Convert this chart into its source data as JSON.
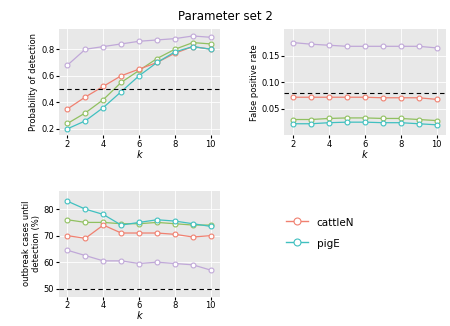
{
  "title": "Parameter set 2",
  "k": [
    2,
    3,
    4,
    5,
    6,
    7,
    8,
    9,
    10
  ],
  "pod": {
    "cattleN": [
      0.35,
      0.44,
      0.52,
      0.6,
      0.65,
      0.7,
      0.77,
      0.82,
      0.8
    ],
    "pigE": [
      0.2,
      0.26,
      0.36,
      0.48,
      0.6,
      0.7,
      0.78,
      0.82,
      0.8
    ],
    "cattleE": [
      0.24,
      0.32,
      0.42,
      0.55,
      0.64,
      0.73,
      0.8,
      0.85,
      0.84
    ],
    "pigN": [
      0.68,
      0.8,
      0.82,
      0.84,
      0.86,
      0.87,
      0.88,
      0.9,
      0.89
    ]
  },
  "fpr": {
    "cattleN": [
      0.072,
      0.072,
      0.072,
      0.072,
      0.072,
      0.071,
      0.071,
      0.071,
      0.068
    ],
    "pigE": [
      0.022,
      0.022,
      0.024,
      0.025,
      0.025,
      0.024,
      0.024,
      0.022,
      0.02
    ],
    "cattleE": [
      0.03,
      0.03,
      0.032,
      0.033,
      0.033,
      0.032,
      0.032,
      0.03,
      0.028
    ],
    "pigN": [
      0.175,
      0.172,
      0.17,
      0.168,
      0.168,
      0.168,
      0.168,
      0.168,
      0.165
    ]
  },
  "outbreak_pct": {
    "cattleN": [
      70.0,
      69.0,
      74.0,
      71.0,
      71.0,
      71.0,
      70.5,
      69.5,
      70.0
    ],
    "pigE": [
      83.0,
      80.0,
      78.0,
      74.0,
      75.0,
      76.0,
      75.5,
      74.5,
      73.5
    ],
    "cattleE": [
      76.0,
      75.0,
      75.0,
      74.5,
      74.5,
      75.0,
      74.5,
      74.0,
      74.0
    ],
    "pigN": [
      64.5,
      62.5,
      60.5,
      60.5,
      59.5,
      60.0,
      59.5,
      59.0,
      57.0
    ]
  },
  "colors": {
    "cattleN": "#F08070",
    "pigE": "#40C0C0",
    "cattleE": "#90C060",
    "pigN": "#C0A8D8"
  },
  "pod_hline": 0.5,
  "fpr_hline": 0.08,
  "outbreak_hline": 50,
  "bg_color": "#E8E8E8"
}
